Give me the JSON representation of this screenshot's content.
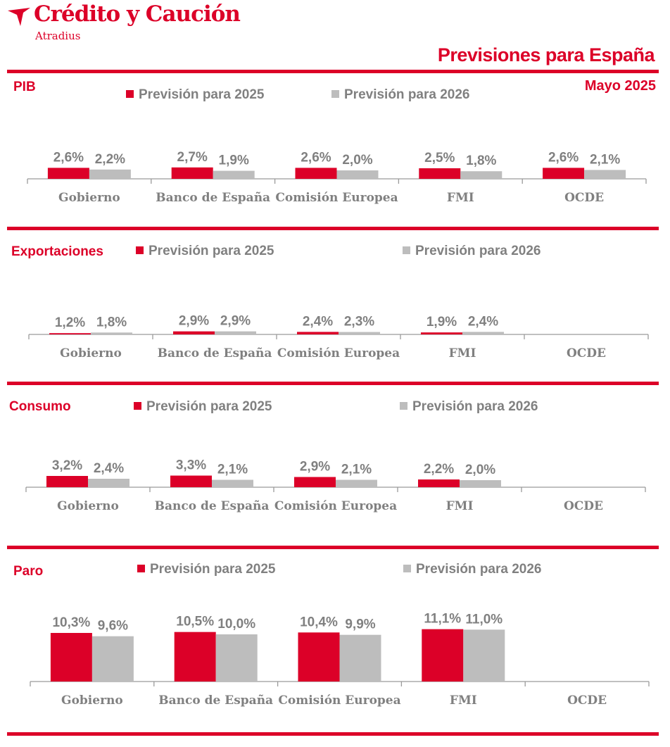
{
  "header": {
    "brand": "Crédito y Caución",
    "brand_sub": "Atradius",
    "page_title": "Previsiones para España",
    "date": "Mayo 2025",
    "logo_icon": "atradius-plane-icon"
  },
  "colors": {
    "accent": "#dc0028",
    "series_2025": "#dc0028",
    "series_2026": "#bdbdbd",
    "text_gray": "#808080"
  },
  "chart_data": [
    {
      "type": "bar",
      "title": "PIB",
      "categories": [
        "Gobierno",
        "Banco de España",
        "Comisión Europea",
        "FMI",
        "OCDE"
      ],
      "series": [
        {
          "name": "Previsión para 2025",
          "values": [
            2.6,
            2.7,
            2.6,
            2.5,
            2.6
          ],
          "labels": [
            "2,6%",
            "2,7%",
            "2,6%",
            "2,5%",
            "2,6%"
          ]
        },
        {
          "name": "Previsión para 2026",
          "values": [
            2.2,
            1.9,
            2.0,
            1.8,
            2.1
          ],
          "labels": [
            "2,2%",
            "1,9%",
            "2,0%",
            "1,8%",
            "2,1%"
          ]
        }
      ]
    },
    {
      "type": "bar",
      "title": "Exportaciones",
      "categories": [
        "Gobierno",
        "Banco de España",
        "Comisión Europea",
        "FMI",
        "OCDE"
      ],
      "series": [
        {
          "name": "Previsión para 2025",
          "values": [
            1.2,
            2.9,
            2.4,
            1.9,
            null
          ],
          "labels": [
            "1,2%",
            "2,9%",
            "2,4%",
            "1,9%",
            ""
          ]
        },
        {
          "name": "Previsión para 2026",
          "values": [
            1.8,
            2.9,
            2.3,
            2.4,
            null
          ],
          "labels": [
            "1,8%",
            "2,9%",
            "2,3%",
            "2,4%",
            ""
          ]
        }
      ]
    },
    {
      "type": "bar",
      "title": "Consumo",
      "categories": [
        "Gobierno",
        "Banco de España",
        "Comisión Europea",
        "FMI",
        "OCDE"
      ],
      "series": [
        {
          "name": "Previsión para 2025",
          "values": [
            3.2,
            3.3,
            2.9,
            2.2,
            null
          ],
          "labels": [
            "3,2%",
            "3,3%",
            "2,9%",
            "2,2%",
            ""
          ]
        },
        {
          "name": "Previsión para 2026",
          "values": [
            2.4,
            2.1,
            2.1,
            2.0,
            null
          ],
          "labels": [
            "2,4%",
            "2,1%",
            "2,1%",
            "2,0%",
            ""
          ]
        }
      ]
    },
    {
      "type": "bar",
      "title": "Paro",
      "categories": [
        "Gobierno",
        "Banco de España",
        "Comisión Europea",
        "FMI",
        "OCDE"
      ],
      "series": [
        {
          "name": "Previsión para 2025",
          "values": [
            10.3,
            10.5,
            10.4,
            11.1,
            null
          ],
          "labels": [
            "10,3%",
            "10,5%",
            "10,4%",
            "11,1%",
            ""
          ]
        },
        {
          "name": "Previsión para 2026",
          "values": [
            9.6,
            10.0,
            9.9,
            11.0,
            null
          ],
          "labels": [
            "9,6%",
            "10,0%",
            "9,9%",
            "11,0%",
            ""
          ]
        }
      ]
    }
  ]
}
